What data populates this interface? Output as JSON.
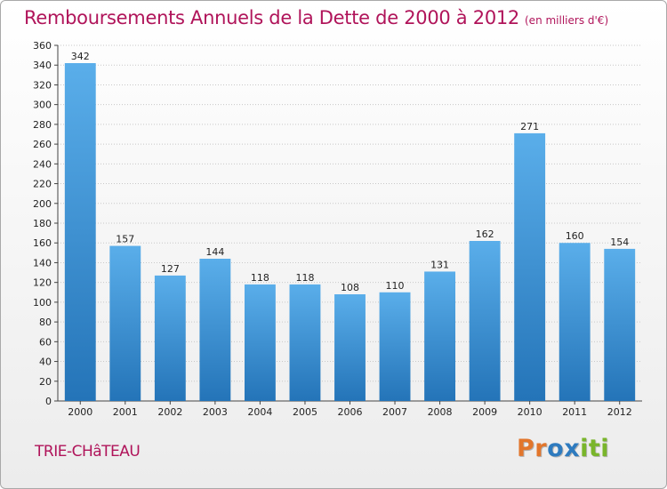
{
  "title": "Remboursements Annuels de la Dette de 2000 à 2012",
  "title_unit": "(en milliers d'€)",
  "commune": "TRIE-CHâTEAU",
  "logo": {
    "letters": [
      "P",
      "r",
      "o",
      "x",
      "i",
      "t",
      "i"
    ],
    "colors": [
      "#e2762c",
      "#e2762c",
      "#2e7bbf",
      "#2e7bbf",
      "#79b52b",
      "#79b52b",
      "#79b52b"
    ]
  },
  "colors": {
    "title": "#b0145a",
    "bar_top": "#5aaeea",
    "bar_bottom": "#2474b8",
    "grid": "#c8c8c8"
  },
  "chart_data": {
    "type": "bar",
    "categories": [
      "2000",
      "2001",
      "2002",
      "2003",
      "2004",
      "2005",
      "2006",
      "2007",
      "2008",
      "2009",
      "2010",
      "2011",
      "2012"
    ],
    "values": [
      342,
      157,
      127,
      144,
      118,
      118,
      108,
      110,
      131,
      162,
      271,
      160,
      154
    ],
    "ylim": [
      0,
      360
    ],
    "ytick_step": 20,
    "grid": true,
    "data_labels": true
  }
}
